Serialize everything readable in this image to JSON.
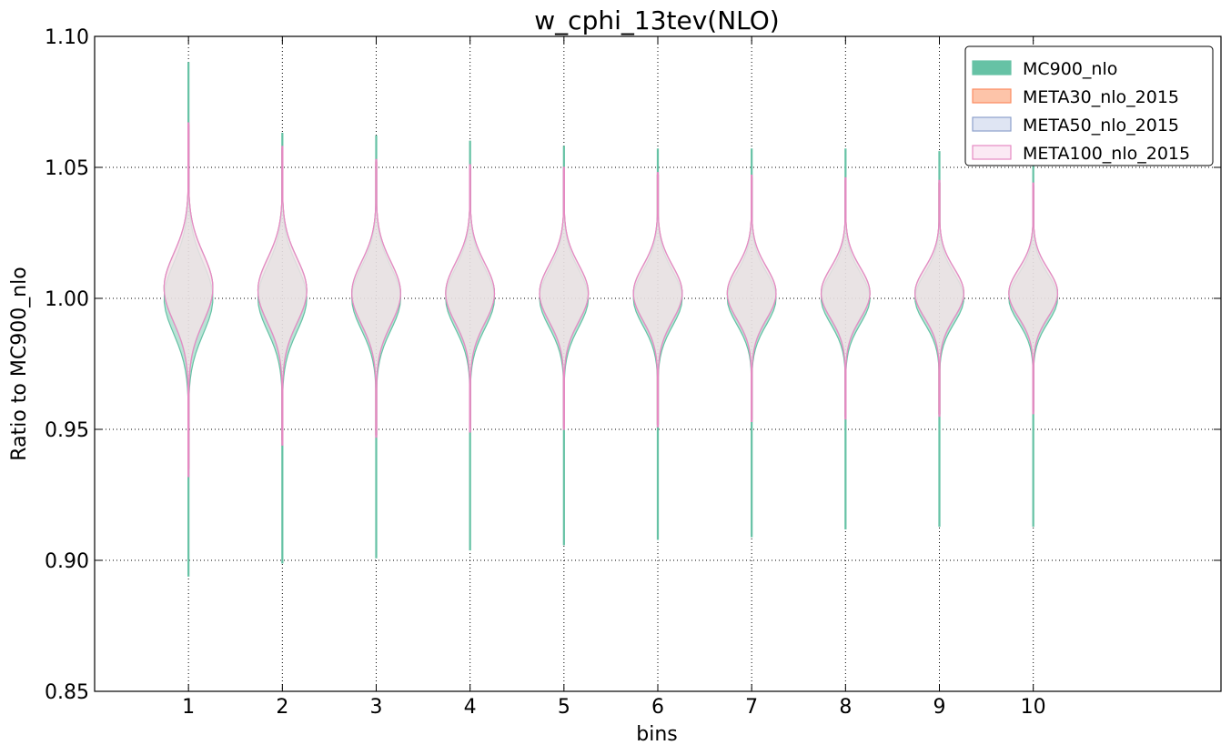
{
  "chart_data": {
    "type": "violin",
    "title": "w_cphi_13tev(NLO)",
    "xlabel": "bins",
    "ylabel": "Ratio to MC900_nlo",
    "xlim": [
      0,
      12
    ],
    "ylim": [
      0.85,
      1.1
    ],
    "yticks": [
      "0.85",
      "0.90",
      "0.95",
      "1.00",
      "1.05",
      "1.10"
    ],
    "categories": [
      "1",
      "2",
      "3",
      "4",
      "5",
      "6",
      "7",
      "8",
      "9",
      "10"
    ],
    "grid": true,
    "legend_position": "top-right",
    "series": [
      {
        "name": "MC900_nlo",
        "color": "#66c2a5",
        "fill": "#66c2a5",
        "min": [
          0.894,
          0.899,
          0.901,
          0.904,
          0.906,
          0.908,
          0.909,
          0.912,
          0.913,
          0.913
        ],
        "max": [
          1.09,
          1.063,
          1.062,
          1.06,
          1.058,
          1.057,
          1.057,
          1.057,
          1.056,
          1.055
        ],
        "center": [
          1.0,
          1.0,
          1.0,
          1.0,
          1.0,
          1.0,
          1.0,
          1.0,
          1.0,
          1.0
        ],
        "sigma": [
          0.0135,
          0.0125,
          0.012,
          0.0115,
          0.011,
          0.0105,
          0.01,
          0.0098,
          0.0095,
          0.0092
        ]
      },
      {
        "name": "META30_nlo_2015",
        "color": "#fc8d62",
        "fill": "#fdc4a9",
        "min": [
          0.935,
          0.946,
          0.948,
          0.95,
          0.951,
          0.952,
          0.954,
          0.955,
          0.956,
          0.957
        ],
        "max": [
          1.066,
          1.057,
          1.052,
          1.05,
          1.049,
          1.047,
          1.046,
          1.045,
          1.044,
          1.043
        ],
        "center": [
          1.004,
          1.003,
          1.002,
          1.002,
          1.002,
          1.002,
          1.002,
          1.002,
          1.002,
          1.002
        ],
        "sigma": [
          0.013,
          0.0122,
          0.0118,
          0.0113,
          0.0108,
          0.0104,
          0.0099,
          0.0097,
          0.0094,
          0.0091
        ]
      },
      {
        "name": "META50_nlo_2015",
        "color": "#8da0cb",
        "fill": "#dfe5f3",
        "min": [
          0.935,
          0.946,
          0.948,
          0.95,
          0.951,
          0.952,
          0.954,
          0.955,
          0.956,
          0.957
        ],
        "max": [
          1.066,
          1.057,
          1.052,
          1.05,
          1.049,
          1.047,
          1.046,
          1.045,
          1.044,
          1.043
        ],
        "center": [
          1.004,
          1.003,
          1.002,
          1.002,
          1.002,
          1.002,
          1.002,
          1.002,
          1.002,
          1.002
        ],
        "sigma": [
          0.013,
          0.0122,
          0.0118,
          0.0113,
          0.0108,
          0.0104,
          0.0099,
          0.0097,
          0.0094,
          0.0091
        ]
      },
      {
        "name": "META100_nlo_2015",
        "color": "#e78ac3",
        "fill": "#fbeaf4",
        "min": [
          0.932,
          0.944,
          0.947,
          0.949,
          0.95,
          0.951,
          0.953,
          0.954,
          0.955,
          0.956
        ],
        "max": [
          1.067,
          1.058,
          1.053,
          1.051,
          1.05,
          1.048,
          1.047,
          1.046,
          1.045,
          1.044
        ],
        "center": [
          1.004,
          1.003,
          1.002,
          1.002,
          1.002,
          1.002,
          1.002,
          1.002,
          1.002,
          1.002
        ],
        "sigma": [
          0.0131,
          0.0123,
          0.0119,
          0.0114,
          0.0109,
          0.0105,
          0.01,
          0.0098,
          0.0095,
          0.0092
        ]
      }
    ]
  }
}
